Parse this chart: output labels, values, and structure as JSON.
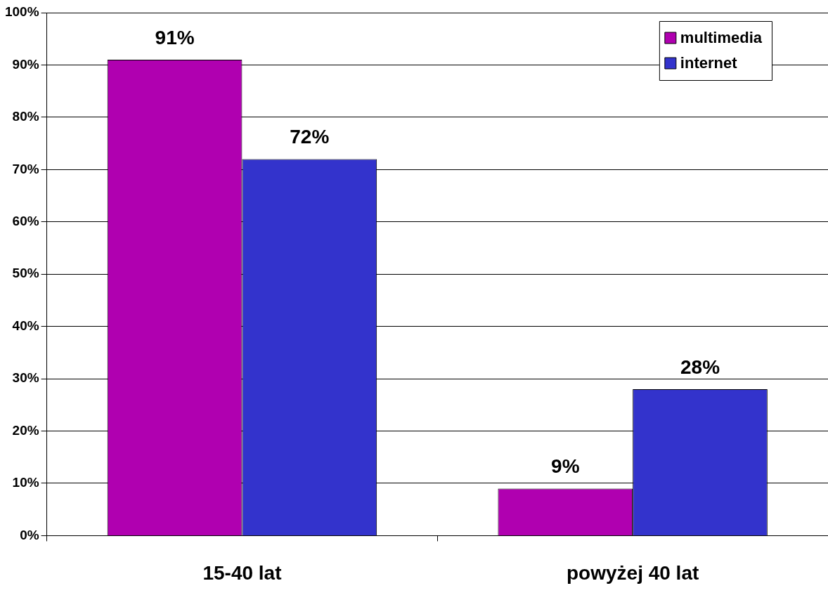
{
  "chart_data": {
    "type": "bar",
    "categories": [
      "15-40 lat",
      "powyżej 40 lat"
    ],
    "series": [
      {
        "name": "multimedia",
        "color": "#b000b0",
        "values": [
          91,
          9
        ],
        "value_labels": [
          "91%",
          "9%"
        ]
      },
      {
        "name": "internet",
        "color": "#3333cc",
        "values": [
          72,
          28
        ],
        "value_labels": [
          "72%",
          "28%"
        ]
      }
    ],
    "ylim": [
      0,
      100
    ],
    "yticks": [
      {
        "value": 0,
        "label": "0%"
      },
      {
        "value": 10,
        "label": "10%"
      },
      {
        "value": 20,
        "label": "20%"
      },
      {
        "value": 30,
        "label": "30%"
      },
      {
        "value": 40,
        "label": "40%"
      },
      {
        "value": 50,
        "label": "50%"
      },
      {
        "value": 60,
        "label": "60%"
      },
      {
        "value": 70,
        "label": "70%"
      },
      {
        "value": 80,
        "label": "80%"
      },
      {
        "value": 90,
        "label": "90%"
      },
      {
        "value": 100,
        "label": "100%"
      }
    ],
    "grid": "y",
    "legend": "top right"
  }
}
